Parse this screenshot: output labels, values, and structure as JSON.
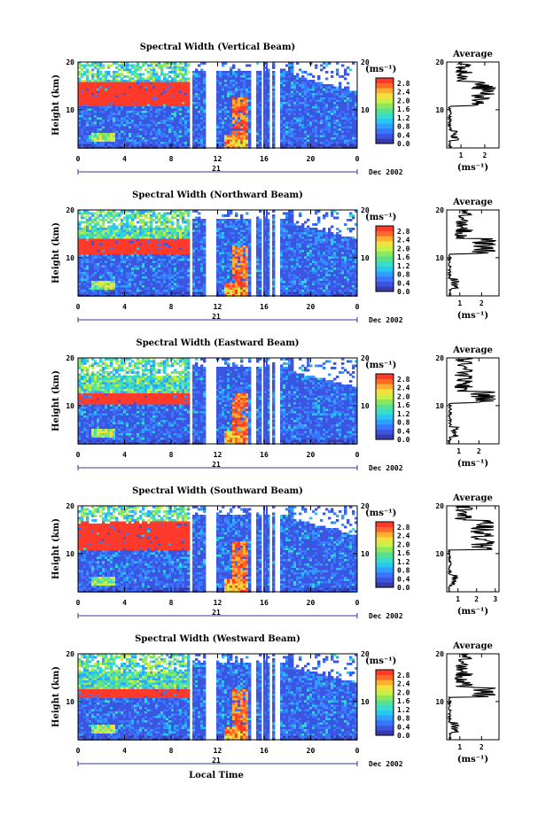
{
  "figure": {
    "xlabel": "Local Time",
    "date_label": "Dec 2002",
    "day_label": "21"
  },
  "colorbar": {
    "unit": "(ms⁻¹)",
    "ticks": [
      "2.8",
      "2.4",
      "2.0",
      "1.6",
      "1.2",
      "0.8",
      "0.4",
      "0.0"
    ],
    "colors": [
      "#3a3aa8",
      "#3c55e0",
      "#3a75ff",
      "#2fa0ff",
      "#29c8f0",
      "#3adcc8",
      "#58e090",
      "#8ae860",
      "#c8f048",
      "#f0e040",
      "#ffb030",
      "#ff6a28",
      "#ff3a2a"
    ]
  },
  "chart_data": [
    {
      "type": "heatmap",
      "title": "Spectral Width (Vertical Beam)",
      "ylabel": "Height (km)",
      "yticks": [
        "20",
        "10"
      ],
      "xticks": [
        "0",
        "4",
        "8",
        "12",
        "16",
        "20",
        "0"
      ],
      "xlim": [
        0,
        24
      ],
      "ylim": [
        2,
        20
      ],
      "zlim": [
        0.0,
        2.8
      ],
      "red_band_km": [
        10.8,
        16.0
      ],
      "profile": {
        "title": "Average",
        "xlabel": "(ms⁻¹)",
        "xticks": [
          "1",
          "2"
        ],
        "xlim": [
          0.4,
          2.6
        ],
        "yticks": [
          "20",
          "10"
        ]
      }
    },
    {
      "type": "heatmap",
      "title": "Spectral Width (Northward Beam)",
      "ylabel": "Height (km)",
      "yticks": [
        "20",
        "10"
      ],
      "xticks": [
        "0",
        "4",
        "8",
        "12",
        "16",
        "20",
        "0"
      ],
      "xlim": [
        0,
        24
      ],
      "ylim": [
        2,
        20
      ],
      "zlim": [
        0.0,
        2.8
      ],
      "red_band_km": [
        10.8,
        14.0
      ],
      "profile": {
        "title": "Average",
        "xlabel": "(ms⁻¹)",
        "xticks": [
          "1",
          "2"
        ],
        "xlim": [
          0.4,
          2.8
        ],
        "yticks": [
          "20",
          "10"
        ]
      }
    },
    {
      "type": "heatmap",
      "title": "Spectral Width (Eastward Beam)",
      "ylabel": "Height (km)",
      "yticks": [
        "20",
        "10"
      ],
      "xticks": [
        "0",
        "4",
        "8",
        "12",
        "16",
        "20",
        "0"
      ],
      "xlim": [
        0,
        24
      ],
      "ylim": [
        2,
        20
      ],
      "zlim": [
        0.0,
        2.8
      ],
      "red_band_km": [
        10.5,
        13.0
      ],
      "profile": {
        "title": "Average",
        "xlabel": "(ms⁻¹)",
        "xticks": [
          "1",
          "2"
        ],
        "xlim": [
          0.4,
          3.0
        ],
        "yticks": [
          "20",
          "10"
        ]
      }
    },
    {
      "type": "heatmap",
      "title": "Spectral Width (Southward Beam)",
      "ylabel": "Height (km)",
      "yticks": [
        "20",
        "10"
      ],
      "xticks": [
        "0",
        "4",
        "8",
        "12",
        "16",
        "20",
        "0"
      ],
      "xlim": [
        0,
        24
      ],
      "ylim": [
        2,
        20
      ],
      "zlim": [
        0.0,
        2.8
      ],
      "red_band_km": [
        10.8,
        17.0
      ],
      "profile": {
        "title": "Average",
        "xlabel": "(ms⁻¹)",
        "xticks": [
          "1",
          "2",
          "3"
        ],
        "xlim": [
          0.4,
          3.2
        ],
        "yticks": [
          "20",
          "10"
        ]
      }
    },
    {
      "type": "heatmap",
      "title": "Spectral Width (Westward Beam)",
      "ylabel": "Height (km)",
      "yticks": [
        "20",
        "10"
      ],
      "xticks": [
        "0",
        "4",
        "8",
        "12",
        "16",
        "20",
        "0"
      ],
      "xlim": [
        0,
        24
      ],
      "ylim": [
        2,
        20
      ],
      "zlim": [
        0.0,
        2.8
      ],
      "red_band_km": [
        11.0,
        13.0
      ],
      "profile": {
        "title": "Average",
        "xlabel": "(ms⁻¹)",
        "xticks": [
          "1",
          "2"
        ],
        "xlim": [
          0.4,
          2.8
        ],
        "yticks": [
          "20",
          "10"
        ]
      }
    }
  ]
}
